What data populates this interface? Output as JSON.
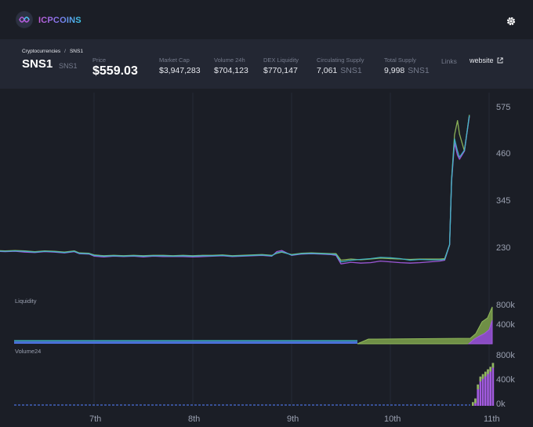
{
  "app": {
    "brand": "ICPCOINS"
  },
  "breadcrumb": {
    "parent": "Cryptocurrencies",
    "separator": "/",
    "current": "SNS1"
  },
  "token": {
    "name": "SNS1",
    "symbol": "SNS1"
  },
  "stats": {
    "price": {
      "label": "Price",
      "value": "$559.03"
    },
    "market_cap": {
      "label": "Market Cap",
      "value": "$3,947,283"
    },
    "volume_24h": {
      "label": "Volume 24h",
      "value": "$704,123"
    },
    "dex_liquidity": {
      "label": "DEX Liquidity",
      "value": "$770,147"
    },
    "circulating_supply": {
      "label": "Circulating Supply",
      "value": "7,061",
      "unit": "SNS1"
    },
    "total_supply": {
      "label": "Total Supply",
      "value": "9,998",
      "unit": "SNS1"
    },
    "links": {
      "label": "Links",
      "website": "website"
    }
  },
  "icons": {
    "logo": "icpcoins-logo-icon",
    "settings": "gear-icon",
    "external": "external-link-icon"
  },
  "colors": {
    "green": "#8fb85a",
    "purple": "#a35be0",
    "cyan": "#3fb6c8",
    "blue": "#4a6fd8"
  },
  "chart_data": {
    "type": "line",
    "x_ticks": [
      "7th",
      "8th",
      "9th",
      "10th",
      "11th"
    ],
    "price_panel": {
      "y_ticks": [
        "575",
        "460",
        "345",
        "230"
      ],
      "ylim": [
        150,
        600
      ],
      "x": [
        0,
        0.1,
        0.2,
        0.3,
        0.4,
        0.5,
        0.6,
        0.7,
        0.8,
        0.85,
        0.95,
        1.0,
        1.1,
        1.2,
        1.3,
        1.4,
        1.5,
        1.6,
        1.7,
        1.8,
        1.9,
        2.0,
        2.1,
        2.2,
        2.3,
        2.4,
        2.5,
        2.6,
        2.7,
        2.8,
        2.85,
        2.9,
        3.0,
        3.1,
        3.2,
        3.3,
        3.4,
        3.45,
        3.5,
        3.6,
        3.7,
        3.8,
        3.9,
        4.0,
        4.1,
        4.2,
        4.3,
        4.4,
        4.5,
        4.55,
        4.6,
        4.62,
        4.65,
        4.68,
        4.7,
        4.75,
        4.8
      ],
      "series": [
        {
          "color": "#8fb85a",
          "values": [
            226,
            225,
            226,
            225,
            223,
            225,
            224,
            222,
            225,
            220,
            219,
            215,
            213,
            214,
            213,
            214,
            213,
            214,
            214,
            213,
            214,
            213,
            214,
            214,
            215,
            213,
            214,
            215,
            216,
            214,
            219,
            222,
            216,
            219,
            220,
            219,
            218,
            218,
            202,
            205,
            203,
            205,
            207,
            206,
            205,
            204,
            205,
            205,
            205,
            206,
            240,
            400,
            510,
            545,
            512,
            470,
            559
          ]
        },
        {
          "color": "#a35be0",
          "values": [
            224,
            223,
            224,
            222,
            221,
            223,
            222,
            220,
            223,
            218,
            217,
            212,
            210,
            212,
            211,
            212,
            210,
            212,
            211,
            211,
            211,
            210,
            211,
            212,
            213,
            211,
            212,
            213,
            214,
            212,
            223,
            226,
            214,
            217,
            218,
            217,
            216,
            214,
            193,
            197,
            195,
            196,
            200,
            198,
            196,
            195,
            196,
            198,
            200,
            202,
            240,
            395,
            490,
            460,
            450,
            470,
            555
          ]
        },
        {
          "color": "#3fb6c8",
          "values": [
            225,
            224,
            225,
            224,
            222,
            224,
            223,
            221,
            224,
            219,
            218,
            214,
            212,
            213,
            212,
            213,
            212,
            213,
            213,
            212,
            213,
            212,
            213,
            213,
            214,
            212,
            213,
            214,
            215,
            213,
            220,
            223,
            215,
            218,
            219,
            218,
            217,
            216,
            198,
            202,
            204,
            206,
            209,
            208,
            206,
            202,
            204,
            203,
            203,
            204,
            240,
            398,
            500,
            470,
            455,
            472,
            557
          ]
        }
      ]
    },
    "liquidity_panel": {
      "label": "Liquidity",
      "y_ticks": [
        "800k",
        "400k"
      ],
      "ylim": [
        0,
        850000
      ]
    },
    "volume_panel": {
      "label": "Volume24",
      "y_ticks": [
        "800k",
        "400k",
        "0k"
      ],
      "ylim": [
        0,
        850000
      ],
      "bar_x": [
        4.55,
        4.58,
        4.61,
        4.64,
        4.67,
        4.7,
        4.73,
        4.76,
        4.79
      ],
      "bar_values": [
        60000,
        120000,
        350000,
        480000,
        520000,
        560000,
        600000,
        640000,
        704123
      ]
    }
  }
}
